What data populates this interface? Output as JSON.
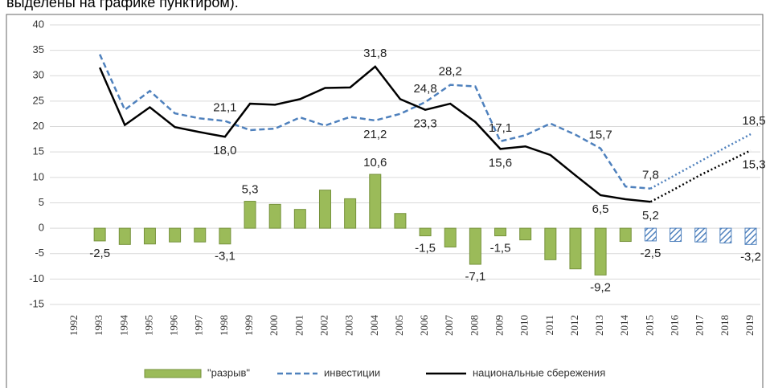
{
  "caption": "выделены на графике пунктиром).",
  "chart_data": {
    "type": "combo",
    "categories": [
      "1992",
      "1993",
      "1994",
      "1995",
      "1996",
      "1997",
      "1998",
      "1999",
      "2000",
      "2001",
      "2002",
      "2003",
      "2004",
      "2005",
      "2006",
      "2007",
      "2008",
      "2009",
      "2010",
      "2011",
      "2012",
      "2013",
      "2014",
      "2015",
      "2016",
      "2017",
      "2018",
      "2019"
    ],
    "forecast_from": "2015",
    "ylim": [
      -15,
      40
    ],
    "yticks": [
      -15,
      -10,
      -5,
      0,
      5,
      10,
      15,
      20,
      25,
      30,
      35,
      40
    ],
    "grid": true,
    "legend": "bottom",
    "series": [
      {
        "name": "\"разрыв\"",
        "type": "bar",
        "color": "#9bbb59",
        "forecast_color": "#4f81bd",
        "values": [
          null,
          -2.5,
          -3.2,
          -3.1,
          -2.7,
          -2.7,
          -3.1,
          5.3,
          4.7,
          3.7,
          7.5,
          5.8,
          10.6,
          2.9,
          -1.5,
          -3.7,
          -7.1,
          -1.5,
          -2.3,
          -6.2,
          -8.0,
          -9.2,
          -2.6,
          -2.5,
          -2.6,
          -2.7,
          -2.9,
          -3.2
        ],
        "value_labels": [
          null,
          "-2,5",
          null,
          null,
          null,
          null,
          "-3,1",
          "5,3",
          null,
          null,
          null,
          null,
          "10,6",
          null,
          "-1,5",
          null,
          "-7,1",
          "-1,5",
          null,
          null,
          null,
          "-9,2",
          null,
          "-2,5",
          null,
          null,
          null,
          "-3,2"
        ]
      },
      {
        "name": "инвестиции",
        "type": "line",
        "color": "#4f81bd",
        "dash": "dashed",
        "values": [
          null,
          34.2,
          23.3,
          27.0,
          22.6,
          21.6,
          21.1,
          19.3,
          19.6,
          21.8,
          20.2,
          21.9,
          21.2,
          22.5,
          24.8,
          28.2,
          27.9,
          17.1,
          18.3,
          20.6,
          18.4,
          15.7,
          8.2,
          7.8,
          10.5,
          13.2,
          15.9,
          18.5
        ],
        "value_labels": [
          null,
          null,
          null,
          null,
          null,
          null,
          "21,1",
          null,
          null,
          null,
          null,
          null,
          "21,2",
          null,
          "24,8",
          "28,2",
          null,
          "17,1",
          null,
          null,
          null,
          "15,7",
          null,
          "7,8",
          null,
          null,
          null,
          "18,5"
        ]
      },
      {
        "name": "национальные сбережения",
        "type": "line",
        "color": "#000000",
        "dash": "solid",
        "values": [
          null,
          31.6,
          20.3,
          23.8,
          19.9,
          18.9,
          18.0,
          24.5,
          24.3,
          25.4,
          27.6,
          27.7,
          31.8,
          25.4,
          23.3,
          24.5,
          20.9,
          15.6,
          16.1,
          14.4,
          10.4,
          6.5,
          5.7,
          5.2,
          7.8,
          10.5,
          12.9,
          15.3
        ],
        "value_labels": [
          null,
          null,
          null,
          null,
          null,
          null,
          "18,0",
          null,
          null,
          null,
          null,
          null,
          "31,8",
          null,
          "23,3",
          null,
          null,
          "15,6",
          null,
          null,
          null,
          "6,5",
          null,
          "5,2",
          null,
          null,
          null,
          "15,3"
        ]
      }
    ]
  }
}
